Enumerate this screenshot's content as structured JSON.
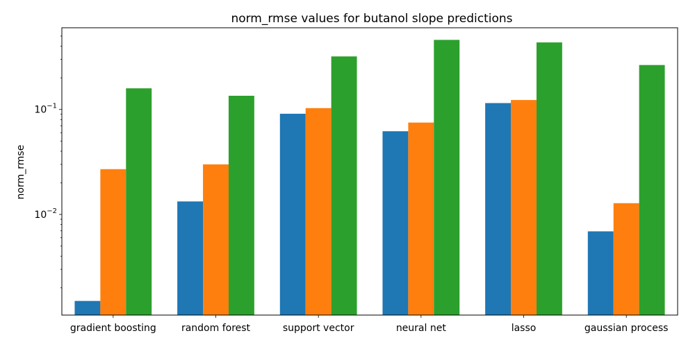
{
  "chart_data": {
    "type": "bar",
    "title": "norm_rmse values for butanol slope predictions",
    "xlabel": "",
    "ylabel": "norm_rmse",
    "yscale": "log",
    "ylim": [
      0.0011,
      0.6
    ],
    "y_ticks": [
      {
        "value": 0.01,
        "base": "10",
        "exp": "−2"
      },
      {
        "value": 0.1,
        "base": "10",
        "exp": "−1"
      }
    ],
    "grid": false,
    "legend": "none",
    "categories": [
      "gradient boosting",
      "random forest",
      "support vector",
      "neural net",
      "lasso",
      "gaussian process"
    ],
    "series": [
      {
        "color": "#1f77b4",
        "values": [
          0.0015,
          0.0133,
          0.091,
          0.062,
          0.115,
          0.0069
        ]
      },
      {
        "color": "#ff7f0e",
        "values": [
          0.027,
          0.03,
          0.103,
          0.075,
          0.123,
          0.0128
        ]
      },
      {
        "color": "#2ca02c",
        "values": [
          0.159,
          0.135,
          0.32,
          0.46,
          0.435,
          0.265
        ]
      }
    ]
  }
}
